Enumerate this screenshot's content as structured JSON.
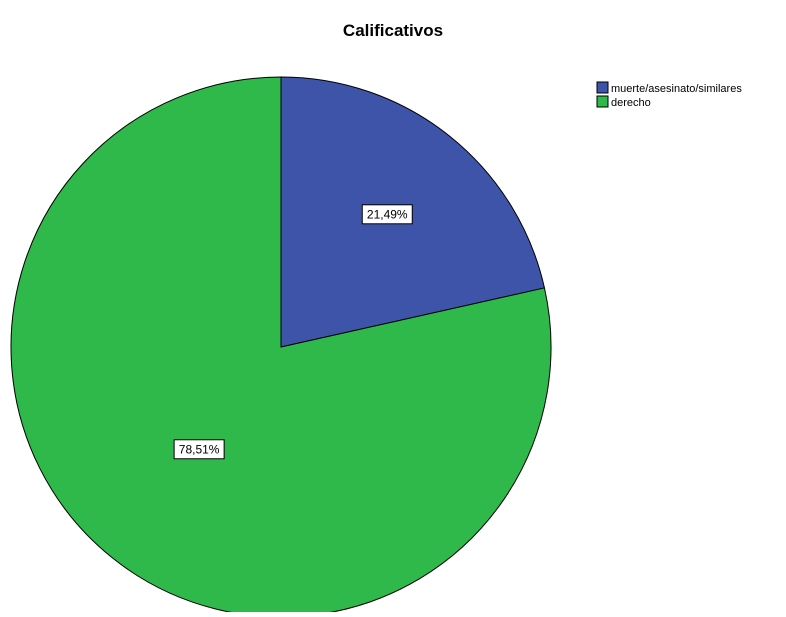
{
  "chart_data": {
    "type": "pie",
    "title": "Calificativos",
    "legend_position": "top-right",
    "slices": [
      {
        "name": "muerte/asesinato/similares",
        "value": 21.49,
        "label": "21,49%",
        "color": "#3e54a8"
      },
      {
        "name": "derecho",
        "value": 78.51,
        "label": "78,51%",
        "color": "#2fb94a"
      }
    ],
    "start_angle_deg": 0,
    "direction": "clockwise"
  }
}
